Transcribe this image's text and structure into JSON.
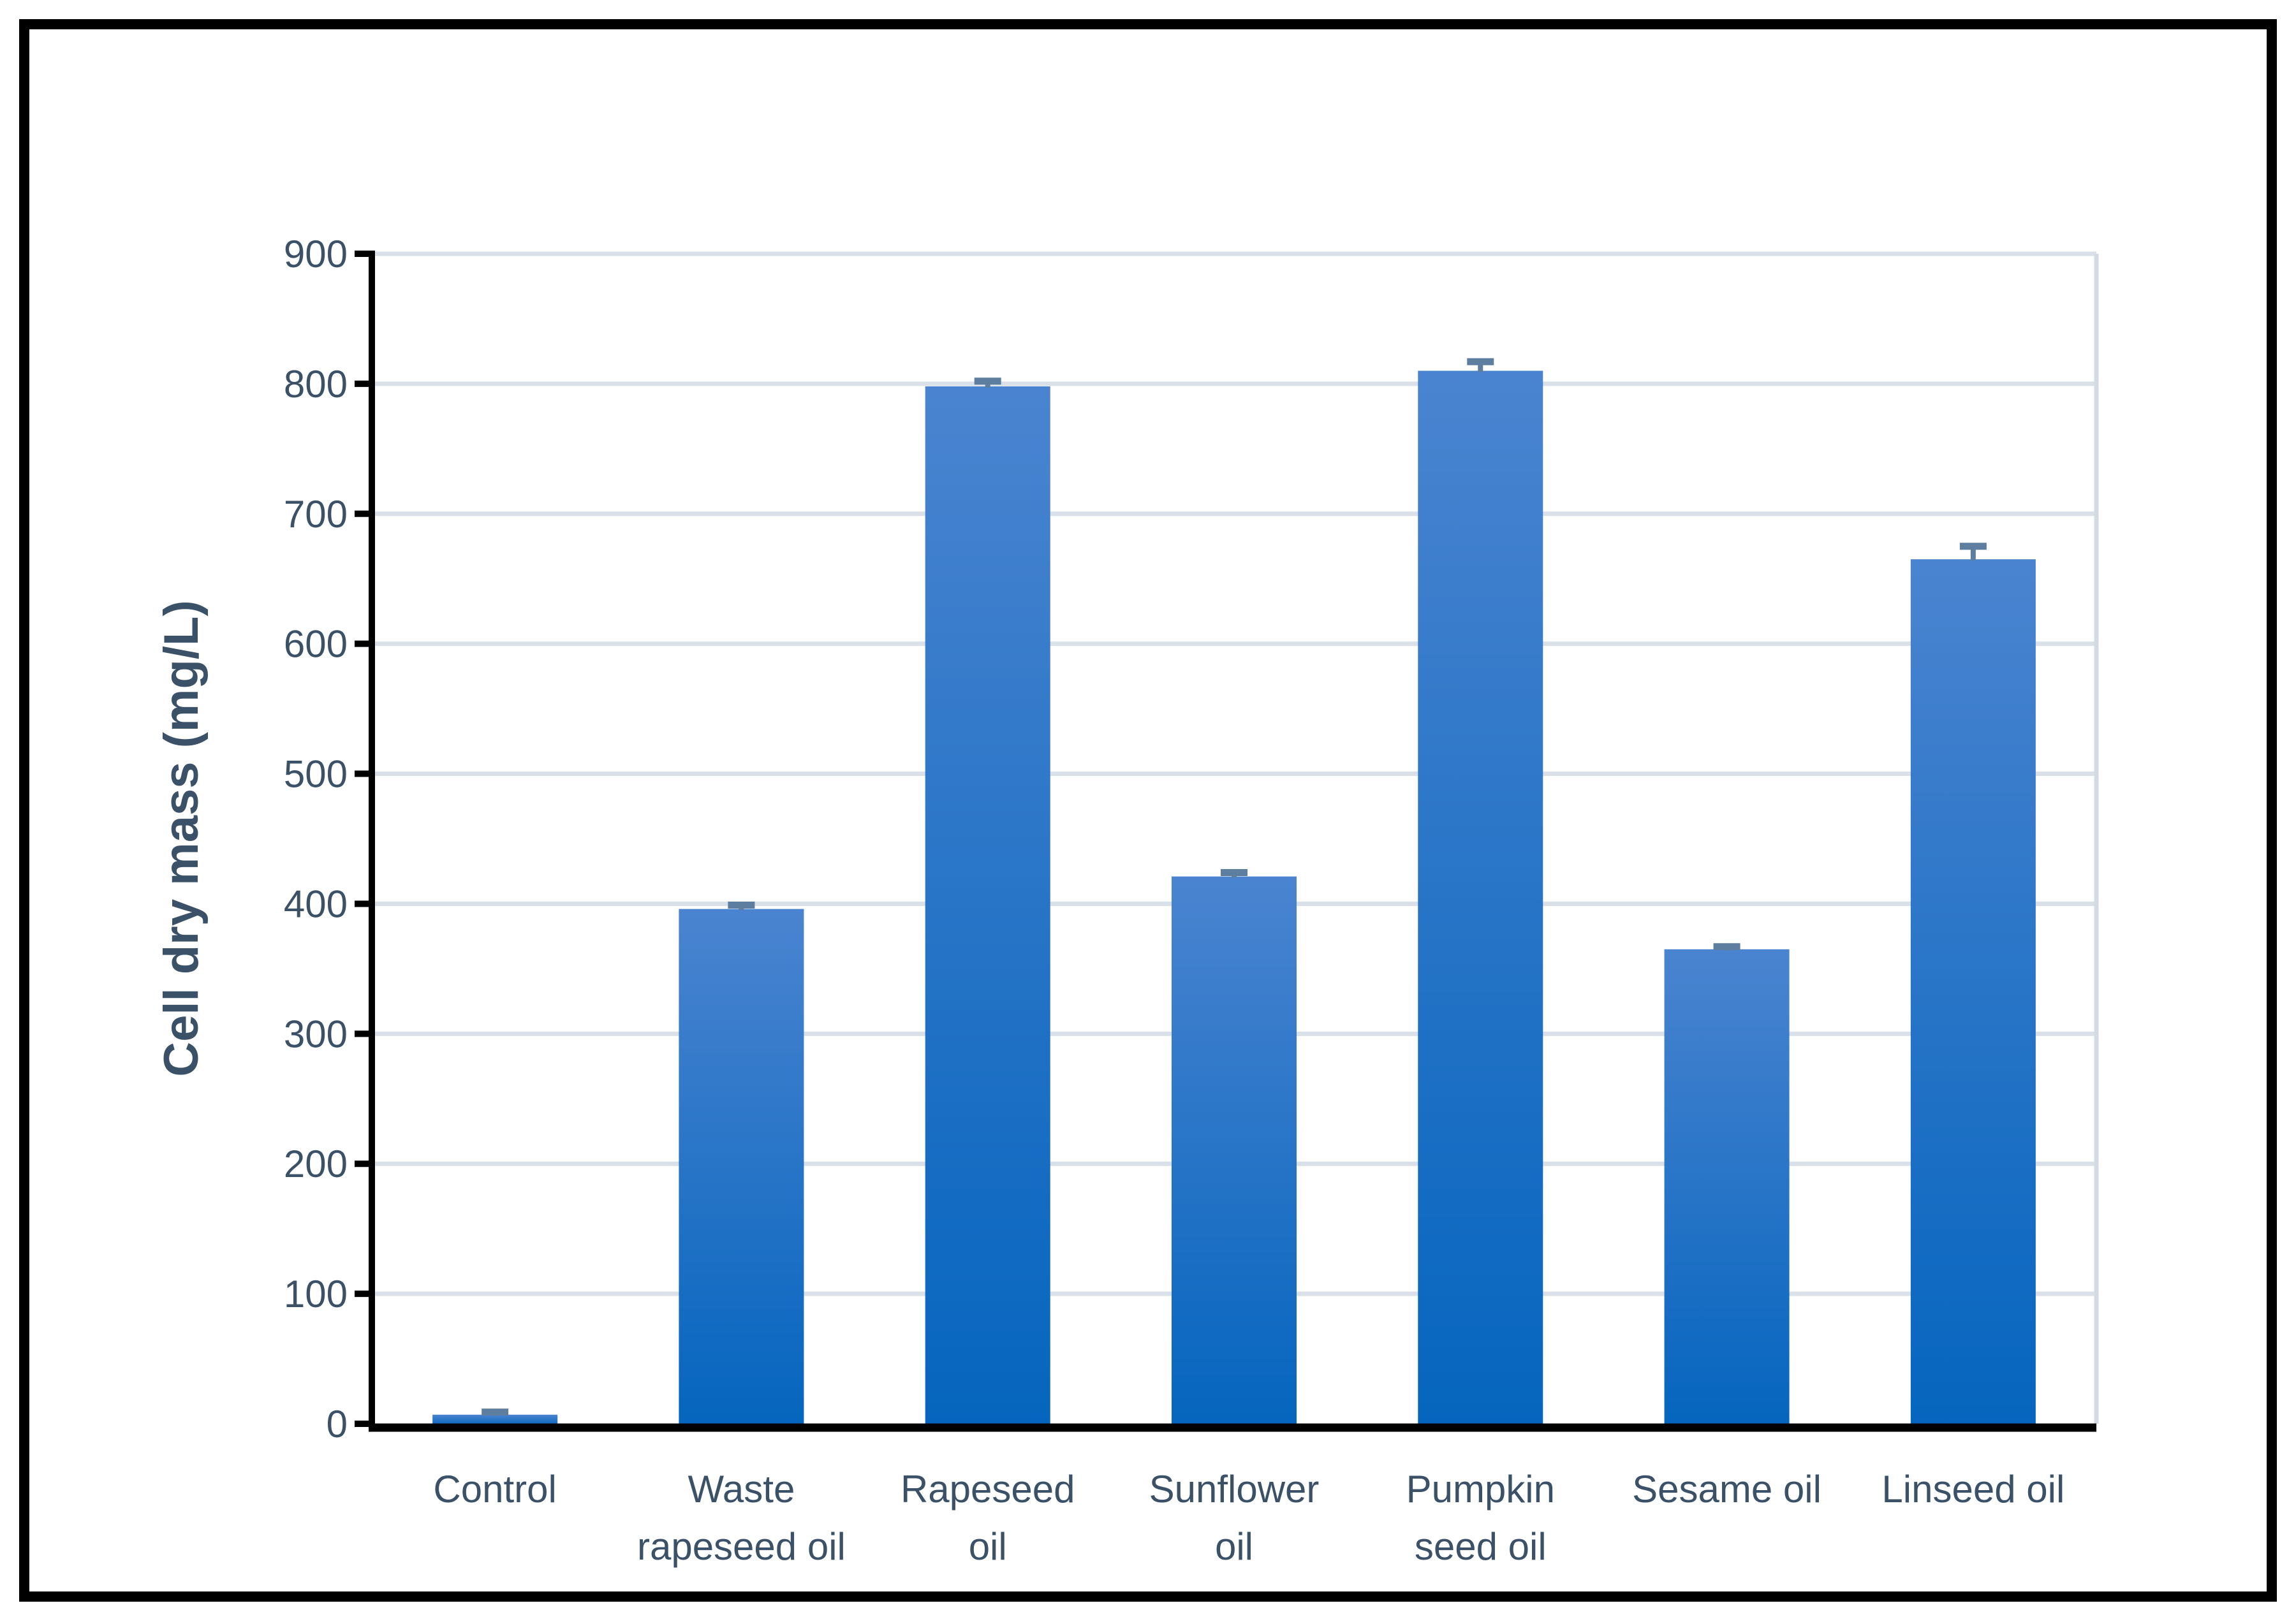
{
  "chart_data": {
    "type": "bar",
    "title": "",
    "categories": [
      "Control",
      "Waste rapeseed oil",
      "Rapeseed oil",
      "Sunflower oil",
      "Pumpkin seed oil",
      "Sesame oil",
      "Linseed oil"
    ],
    "category_label_lines": [
      [
        "Control"
      ],
      [
        "Waste",
        "rapeseed oil"
      ],
      [
        "Rapeseed",
        "oil"
      ],
      [
        "Sunflower",
        "oil"
      ],
      [
        "Pumpkin",
        "seed oil"
      ],
      [
        "Sesame oil"
      ],
      [
        "Linseed oil"
      ]
    ],
    "series": [
      {
        "name": "Cell dry mass",
        "values": [
          7,
          396,
          798,
          421,
          810,
          365,
          665
        ],
        "error_up": [
          2,
          3,
          4,
          3,
          7,
          2,
          10
        ]
      }
    ],
    "xlabel": "",
    "ylabel": "Cell dry mass (mg/L)",
    "ylim": [
      0,
      900
    ],
    "ytick_step": 100,
    "ytick_labels": [
      "0",
      "100",
      "200",
      "300",
      "400",
      "500",
      "600",
      "700",
      "800",
      "900"
    ],
    "grid": "horizontal",
    "legend_position": "none"
  },
  "colors": {
    "bar_gradient_top": "#4A84D0",
    "bar_gradient_bottom": "#0565BE",
    "error_bar": "#5D7E9F",
    "gridline": "#D9E0E8",
    "axis_line": "#000000",
    "text": "#3A5168",
    "plot_right_border": "#D5DBE2",
    "frame_border": "#000000",
    "background": "#FFFFFF"
  }
}
